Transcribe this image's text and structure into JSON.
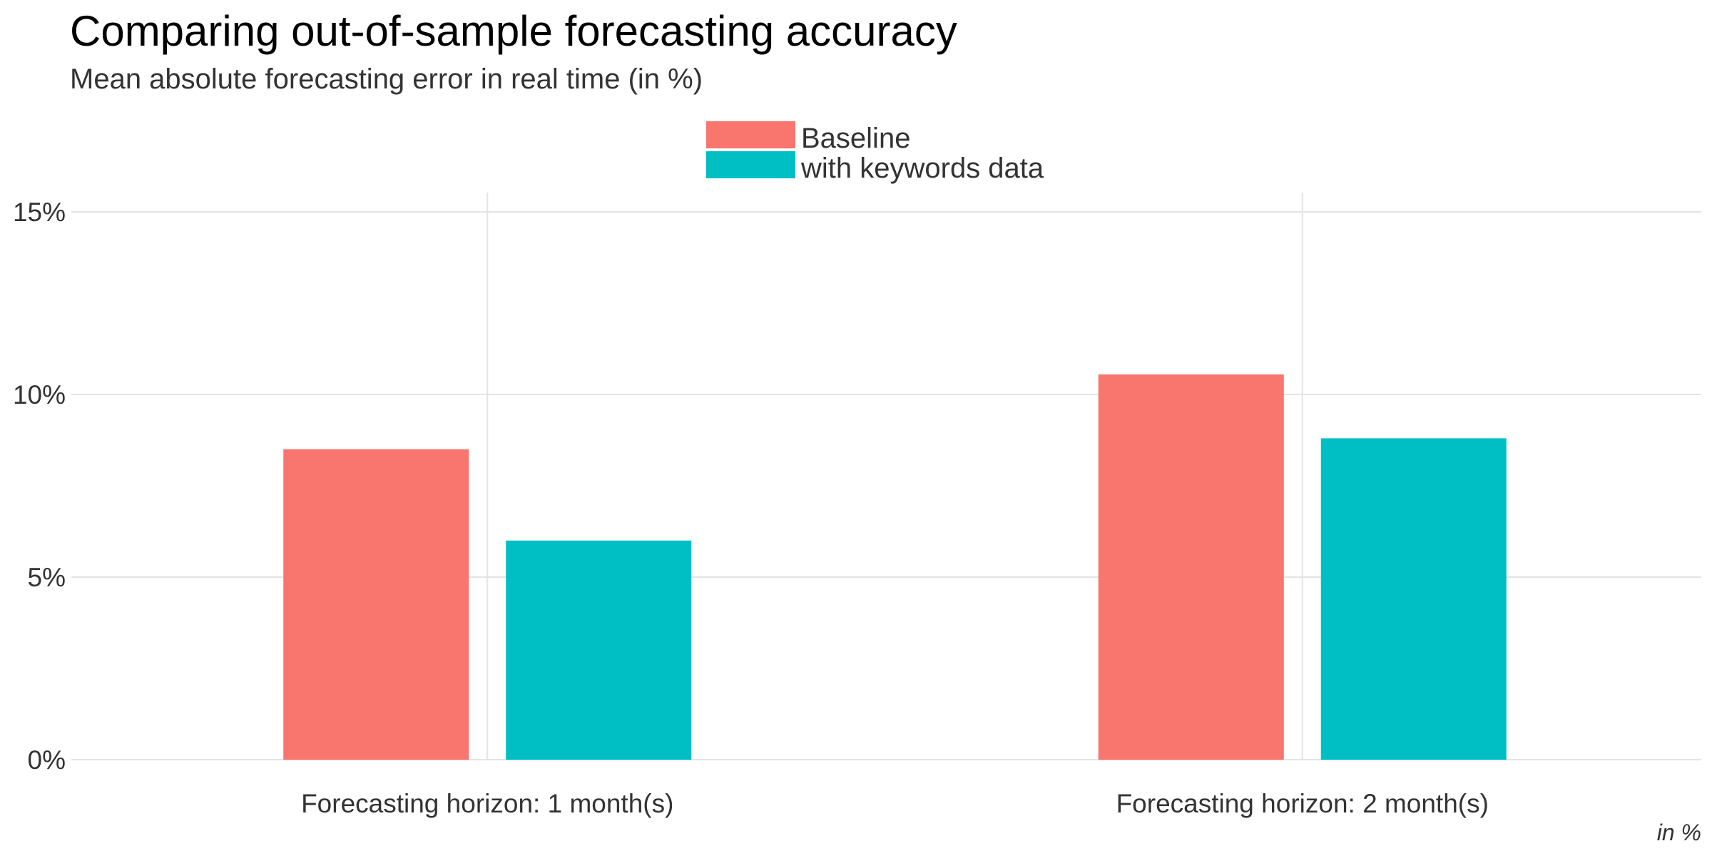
{
  "chart_data": {
    "type": "bar",
    "title": "Comparing out-of-sample forecasting accuracy",
    "subtitle": "Mean absolute forecasting error in real time (in %)",
    "caption": "in %",
    "categories": [
      "Forecasting horizon: 1 month(s)",
      "Forecasting horizon: 2 month(s)"
    ],
    "series": [
      {
        "name": "Baseline",
        "color": "#F8766D",
        "values": [
          8.5,
          10.55
        ]
      },
      {
        "name": "with keywords data",
        "color": "#00BFC4",
        "values": [
          6.0,
          8.8
        ]
      }
    ],
    "ylim": [
      0,
      15
    ],
    "yticks": [
      0,
      5,
      10,
      15
    ],
    "ytick_labels": [
      "0%",
      "5%",
      "10%",
      "15%"
    ],
    "legend_position": "top",
    "grid": true
  }
}
